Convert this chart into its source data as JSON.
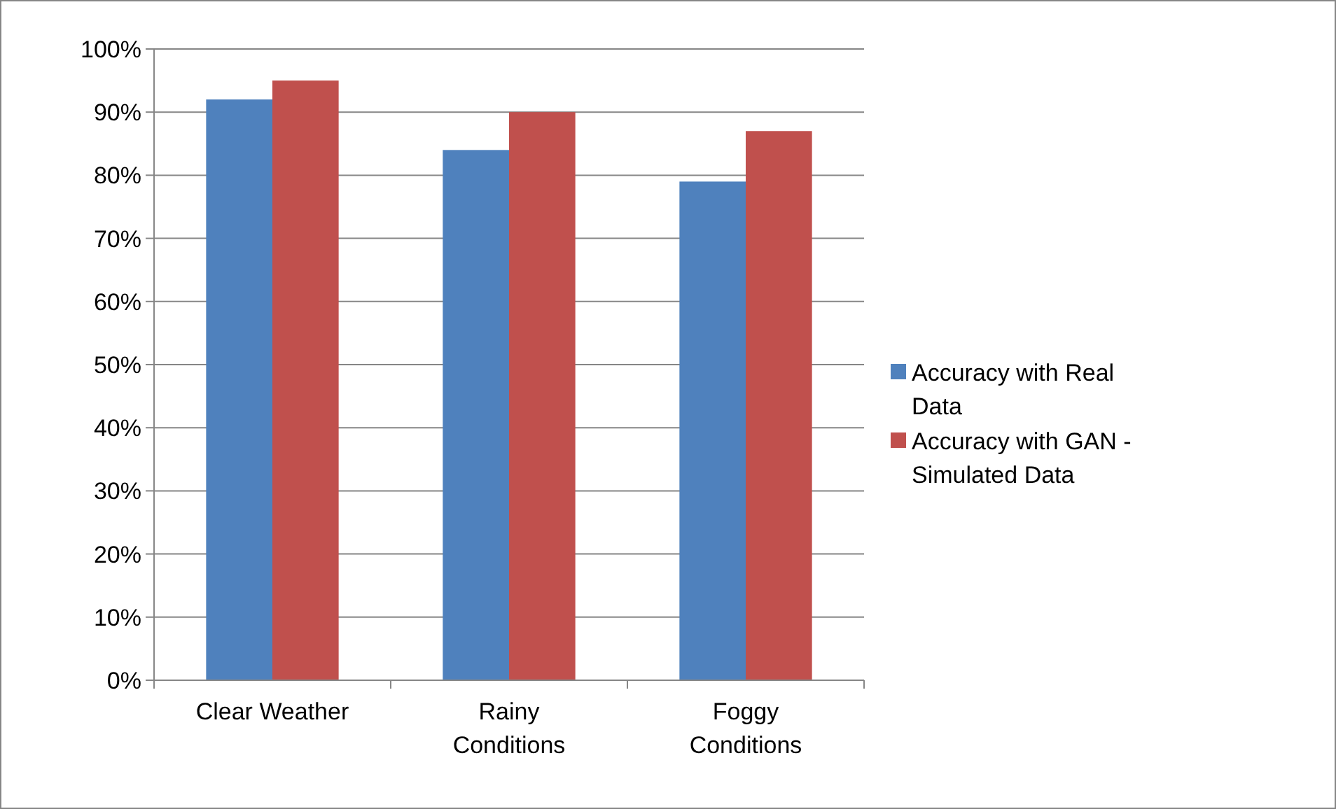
{
  "chart_data": {
    "type": "bar",
    "categories": [
      "Clear Weather",
      "Rainy Conditions",
      "Foggy Conditions"
    ],
    "series": [
      {
        "name": "Accuracy with Real Data",
        "color": "#4f81bd",
        "values": [
          92,
          84,
          79
        ]
      },
      {
        "name": "Accuracy with GAN - Simulated Data",
        "color": "#c0504d",
        "values": [
          95,
          90,
          87
        ]
      }
    ],
    "ylim": [
      0,
      100
    ],
    "yticks": [
      {
        "value": 0,
        "label": "0%"
      },
      {
        "value": 10,
        "label": "10%"
      },
      {
        "value": 20,
        "label": "20%"
      },
      {
        "value": 30,
        "label": "30%"
      },
      {
        "value": 40,
        "label": "40%"
      },
      {
        "value": 50,
        "label": "50%"
      },
      {
        "value": 60,
        "label": "60%"
      },
      {
        "value": 70,
        "label": "70%"
      },
      {
        "value": 80,
        "label": "80%"
      },
      {
        "value": 90,
        "label": "90%"
      },
      {
        "value": 100,
        "label": "100%"
      }
    ],
    "grid": "y",
    "legend": "right"
  }
}
